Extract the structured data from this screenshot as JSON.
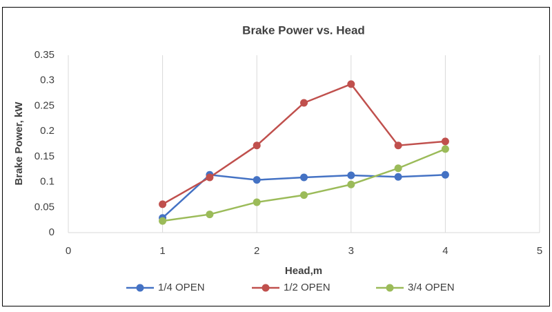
{
  "chart_data": {
    "type": "line",
    "title": "Brake Power vs. Head",
    "x_label": "Head,m",
    "y_label": "Brake Power, kW",
    "x": [
      1,
      1.5,
      2,
      2.5,
      3,
      3.5,
      4
    ],
    "series": [
      {
        "name": "1/4 OPEN",
        "color": "#4472c4",
        "values": [
          0.029,
          0.114,
          0.104,
          0.109,
          0.113,
          0.11,
          0.114
        ]
      },
      {
        "name": "1/2 OPEN",
        "color": "#c0504d",
        "values": [
          0.056,
          0.109,
          0.172,
          0.256,
          0.293,
          0.172,
          0.18
        ]
      },
      {
        "name": "3/4 OPEN",
        "color": "#9bbb59",
        "values": [
          0.023,
          0.036,
          0.06,
          0.074,
          0.095,
          0.127,
          0.165
        ]
      }
    ],
    "xlim": [
      0,
      5
    ],
    "xticks": [
      0,
      1,
      2,
      3,
      4,
      5
    ],
    "ylim": [
      0,
      0.35
    ],
    "yticks": [
      0,
      0.05,
      0.1,
      0.15,
      0.2,
      0.25,
      0.3,
      0.35
    ],
    "grid": "x",
    "legend": "bottom"
  }
}
